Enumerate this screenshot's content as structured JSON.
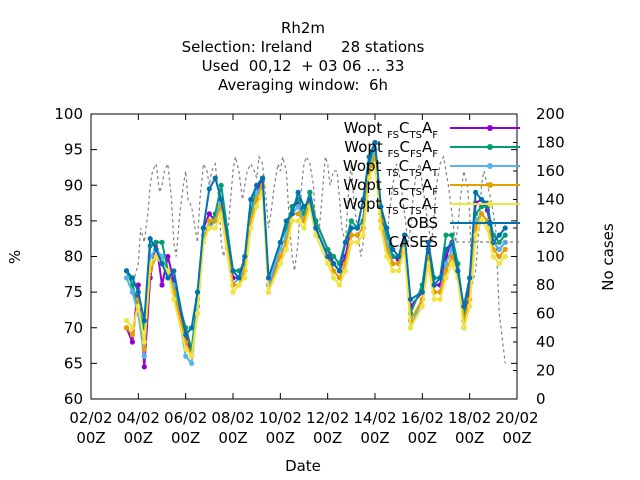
{
  "chart_data": {
    "type": "line",
    "title_lines": [
      "Rh2m",
      "Selection: Ireland      28 stations",
      "Used  00,12  + 03 06 ... 33",
      "Averaging window:  6h"
    ],
    "xlabel": "Date",
    "ylabel": "%",
    "y2label": "No cases",
    "ylim": [
      60,
      100
    ],
    "y2lim": [
      0,
      200
    ],
    "xlim": [
      0,
      18
    ],
    "yticks": [
      "60",
      "65",
      "70",
      "75",
      "80",
      "85",
      "90",
      "95",
      "100"
    ],
    "y2ticks": [
      "0",
      "20",
      "40",
      "60",
      "80",
      "100",
      "120",
      "140",
      "160",
      "180",
      "200"
    ],
    "xticks": [
      {
        "line1": "02/02",
        "line2": "00Z"
      },
      {
        "line1": "04/02",
        "line2": "00Z"
      },
      {
        "line1": "06/02",
        "line2": "00Z"
      },
      {
        "line1": "08/02",
        "line2": "00Z"
      },
      {
        "line1": "10/02",
        "line2": "00Z"
      },
      {
        "line1": "12/02",
        "line2": "00Z"
      },
      {
        "line1": "14/02",
        "line2": "00Z"
      },
      {
        "line1": "16/02",
        "line2": "00Z"
      },
      {
        "line1": "18/02",
        "line2": "00Z"
      },
      {
        "line1": "20/02",
        "line2": "00Z"
      }
    ],
    "x": [
      1.5,
      1.75,
      2.0,
      2.25,
      2.5,
      2.75,
      3.0,
      3.25,
      3.5,
      4.0,
      4.25,
      4.5,
      4.75,
      5.0,
      5.25,
      5.5,
      6.0,
      6.25,
      6.5,
      6.75,
      7.0,
      7.25,
      7.5,
      8.0,
      8.25,
      8.5,
      8.75,
      9.0,
      9.25,
      9.5,
      10.0,
      10.25,
      10.5,
      10.75,
      11.0,
      11.25,
      11.5,
      11.75,
      12.0,
      12.25,
      12.5,
      12.75,
      13.0,
      13.25,
      13.5,
      14.0,
      14.25,
      14.5,
      14.75,
      15.0,
      15.25,
      15.5,
      15.75,
      16.0,
      16.25,
      16.5,
      16.75,
      17.0,
      17.25,
      17.5
    ],
    "legend": [
      {
        "main": "Wopt",
        "sub1": "FS",
        "mid": "C",
        "sub2": "TS",
        "mid2": "A",
        "sub3": "F",
        "color": "#9400d3",
        "marker": "dot"
      },
      {
        "main": "Wopt",
        "sub1": "FS",
        "mid": "C",
        "sub2": "FS",
        "mid2": "A",
        "sub3": "F",
        "color": "#009e73",
        "marker": "dot"
      },
      {
        "main": "Wopt",
        "sub1": "TS",
        "mid": "C",
        "sub2": "TS",
        "mid2": "A",
        "sub3": "T",
        "color": "#56b4e9",
        "marker": "dot"
      },
      {
        "main": "Wopt",
        "sub1": "TS",
        "mid": "C",
        "sub2": "TS",
        "mid2": "A",
        "sub3": "F",
        "color": "#e69f00",
        "marker": "dot"
      },
      {
        "main": "Wopt",
        "sub1": "TS",
        "mid": "C",
        "sub2": "TS",
        "mid2": "A",
        "sub3": "T",
        "color": "#f0e442",
        "marker": "dot"
      },
      {
        "label": "OBS",
        "color": "#0072b2",
        "marker": "dot"
      },
      {
        "label": "CASES",
        "color": "#808080",
        "marker": "dash"
      }
    ],
    "series": [
      {
        "values": [
          70,
          68,
          76,
          64.5,
          77,
          82,
          76,
          80,
          76.5,
          69,
          66,
          73,
          84,
          86,
          85,
          88,
          77,
          77,
          79.5,
          86,
          89,
          91,
          76,
          80,
          82,
          87,
          87.5,
          86,
          89,
          85,
          81,
          79,
          78,
          80,
          84,
          84,
          85,
          93,
          95,
          86,
          82,
          80,
          79.5,
          83,
          73,
          75,
          81,
          76,
          76,
          80,
          82,
          79,
          70,
          76,
          87.5,
          88,
          86.5,
          82,
          81,
          82
        ]
      },
      {
        "values": [
          78,
          76,
          73,
          70,
          81.5,
          82,
          82,
          78,
          76,
          70,
          67,
          74,
          84,
          84,
          86,
          90,
          78,
          78,
          79,
          86,
          90,
          91,
          77,
          82,
          84,
          87,
          88,
          86,
          89,
          85,
          81,
          80,
          79,
          82,
          85,
          84,
          85,
          93,
          96,
          86,
          83,
          80,
          80,
          83,
          72,
          76,
          82,
          77,
          77,
          83,
          83,
          79,
          72,
          77,
          86,
          87,
          87,
          83,
          82,
          83
        ]
      },
      {
        "values": [
          77,
          75,
          72,
          66,
          80,
          81,
          80,
          77,
          76,
          66,
          65,
          73,
          83,
          84,
          85,
          88,
          76,
          77,
          78,
          85,
          89,
          90,
          76,
          81,
          83,
          86,
          87,
          85,
          88,
          84,
          80,
          78,
          77,
          79,
          83,
          83,
          84,
          92,
          95,
          85,
          82,
          79,
          79,
          82,
          70,
          74,
          80,
          75,
          75,
          79,
          81,
          78,
          70,
          74,
          85,
          86,
          85,
          82,
          81,
          82
        ]
      },
      {
        "values": [
          70,
          69,
          74,
          67,
          78,
          80,
          79,
          78,
          75,
          68,
          66,
          72,
          82,
          85,
          85,
          87,
          76,
          76,
          78,
          85,
          88,
          90,
          75,
          80,
          82,
          86,
          86,
          85,
          88,
          84,
          80,
          78,
          77,
          79,
          83,
          83,
          84,
          92,
          94,
          85,
          81,
          79,
          79,
          82,
          71,
          74,
          80,
          75,
          75,
          78,
          80,
          78,
          71,
          74,
          84,
          86,
          85,
          81,
          80,
          81
        ]
      },
      {
        "values": [
          71,
          70,
          73,
          68,
          79,
          80,
          79,
          78,
          74,
          67,
          66,
          72,
          82,
          84,
          84,
          86,
          75,
          76,
          77,
          84,
          87,
          89,
          75,
          79,
          81,
          85,
          85,
          84,
          87,
          83,
          79,
          77,
          76,
          78,
          82,
          82,
          83,
          91,
          93,
          84,
          80,
          78,
          78,
          81,
          70,
          73,
          79,
          74,
          74,
          77,
          79,
          77,
          70,
          73,
          83,
          85,
          84,
          80,
          79,
          80
        ]
      },
      {
        "values": [
          78,
          77,
          75,
          71,
          82.5,
          81,
          79,
          77,
          78,
          69,
          70,
          75,
          84,
          89.5,
          91,
          88,
          78,
          77,
          80,
          88,
          90,
          91,
          77,
          82,
          85,
          86,
          89,
          87,
          88,
          84,
          80,
          79,
          78,
          82,
          84,
          84,
          88,
          94,
          96,
          87,
          84,
          81,
          80,
          83,
          74,
          75,
          82,
          76,
          77,
          81,
          82,
          78,
          73,
          77,
          89,
          88,
          87.5,
          82,
          83,
          84
        ]
      }
    ],
    "cases": {
      "x": [
        1.5,
        1.75,
        2.0,
        2.1,
        2.25,
        2.4,
        2.5,
        2.6,
        2.75,
        2.9,
        3.0,
        3.1,
        3.25,
        3.4,
        3.5,
        3.6,
        3.75,
        3.9,
        4.0,
        4.1,
        4.25,
        4.4,
        4.5,
        4.6,
        4.75,
        4.9,
        5.0,
        5.1,
        5.25,
        5.4,
        5.5,
        5.6,
        5.75,
        5.9,
        6.0,
        6.1,
        6.25,
        6.4,
        6.5,
        6.6,
        6.75,
        6.9,
        7.0,
        7.1,
        7.25,
        7.4,
        7.5,
        7.6,
        7.75,
        7.9,
        8.0,
        8.1,
        8.25,
        8.4,
        8.5,
        8.6,
        8.75,
        8.9,
        9.0,
        9.1,
        9.25,
        9.4,
        9.5,
        9.6,
        9.75,
        9.9,
        10.0,
        10.1,
        10.25,
        10.4,
        10.5,
        10.6,
        10.75,
        10.9,
        11.0,
        11.1,
        11.25,
        11.4,
        11.5,
        11.6,
        11.75,
        11.9,
        12.0,
        12.1,
        12.25,
        12.4,
        12.5,
        12.6,
        12.75,
        12.9,
        13.0,
        13.1,
        13.25,
        13.4,
        13.5,
        13.6,
        13.75,
        13.9,
        14.0,
        14.1,
        14.25,
        14.4,
        14.5,
        14.6,
        14.75,
        14.9,
        15.0,
        15.1,
        15.25,
        15.4,
        15.5,
        15.6,
        15.75,
        15.9,
        16.0,
        16.1,
        16.25,
        16.4,
        16.5,
        16.6,
        16.75,
        16.9,
        17.0,
        17.1,
        17.25,
        17.5
      ],
      "values": [
        90,
        80,
        95,
        120,
        110,
        130,
        150,
        160,
        165,
        145,
        150,
        160,
        165,
        140,
        110,
        100,
        130,
        150,
        160,
        140,
        135,
        120,
        110,
        140,
        165,
        160,
        150,
        160,
        165,
        140,
        110,
        100,
        110,
        140,
        160,
        170,
        160,
        140,
        150,
        160,
        165,
        160,
        155,
        170,
        165,
        140,
        120,
        130,
        150,
        165,
        160,
        170,
        160,
        120,
        100,
        90,
        110,
        150,
        165,
        170,
        165,
        150,
        120,
        110,
        140,
        170,
        165,
        150,
        160,
        160,
        140,
        120,
        110,
        150,
        165,
        140,
        120,
        100,
        110,
        130,
        150,
        165,
        160,
        150,
        140,
        120,
        110,
        130,
        150,
        165,
        160,
        150,
        130,
        110,
        120,
        140,
        160,
        165,
        150,
        140,
        120,
        110,
        130,
        150,
        165,
        170,
        160,
        150,
        130,
        110,
        120,
        140,
        160,
        150,
        130,
        80,
        90,
        120,
        150,
        160,
        150,
        140,
        130,
        120,
        60,
        25
      ]
    }
  }
}
